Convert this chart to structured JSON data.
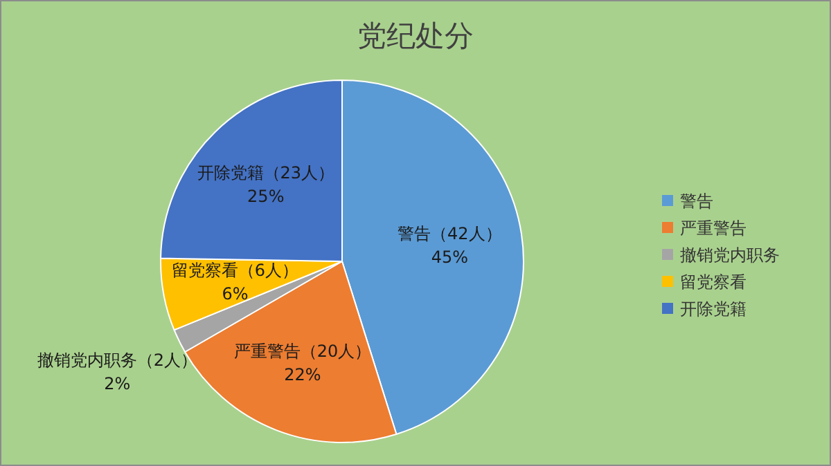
{
  "chart_data": {
    "type": "pie",
    "title": "党纪处分",
    "categories": [
      "警告",
      "严重警告",
      "撤销党内职务",
      "留党察看",
      "开除党籍"
    ],
    "values": [
      42,
      20,
      2,
      6,
      23
    ],
    "colors": [
      "#5b9bd5",
      "#ed7d31",
      "#a5a5a5",
      "#ffc000",
      "#4472c4"
    ],
    "value_labels": [
      "警告（42人）\n45%",
      "严重警告（20人）\n22%",
      "撤销党内职务（2人）\n2%",
      "留党察看（6人）\n6%",
      "开除党籍（23人）\n25%"
    ],
    "legend": "right"
  }
}
